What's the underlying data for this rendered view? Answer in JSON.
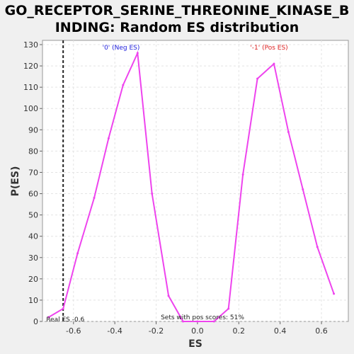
{
  "chart_data": {
    "type": "line",
    "title_line1": "GO_RECEPTOR_SERINE_THREONINE_KINASE_B",
    "title_line2": "INDING: Random ES distribution",
    "xlabel": "ES",
    "ylabel": "P(ES)",
    "xlim": [
      -0.75,
      0.73
    ],
    "ylim": [
      0,
      132
    ],
    "xticks": [
      -0.6,
      -0.4,
      -0.2,
      0.0,
      0.2,
      0.4,
      0.6
    ],
    "xtick_labels": [
      "-0.6",
      "-0.4",
      "-0.2",
      "0.0",
      "0.2",
      "0.4",
      "0.6"
    ],
    "yticks": [
      0,
      10,
      20,
      30,
      40,
      50,
      60,
      70,
      80,
      90,
      100,
      110,
      120,
      130
    ],
    "ytick_labels": [
      "0",
      "10",
      "20",
      "30",
      "40",
      "50",
      "60",
      "70",
      "80",
      "90",
      "100",
      "110",
      "120",
      "130"
    ],
    "grid": true,
    "line_color": "#ee44ee",
    "series": [
      {
        "values": [
          [
            -0.72,
            2
          ],
          [
            -0.65,
            6
          ],
          [
            -0.58,
            32
          ],
          [
            -0.5,
            58
          ],
          [
            -0.43,
            86
          ],
          [
            -0.36,
            111
          ],
          [
            -0.29,
            126
          ],
          [
            -0.22,
            60
          ],
          [
            -0.14,
            12
          ],
          [
            -0.07,
            0
          ],
          [
            0.0,
            0
          ],
          [
            0.08,
            0
          ],
          [
            0.15,
            6
          ],
          [
            0.22,
            69
          ],
          [
            0.29,
            114
          ],
          [
            0.37,
            121
          ],
          [
            0.44,
            89
          ],
          [
            0.51,
            62
          ],
          [
            0.58,
            35
          ],
          [
            0.66,
            13
          ]
        ]
      }
    ],
    "real_es": {
      "value": -0.6,
      "x": -0.65,
      "label": "Real ES -0.6",
      "color": "#222222"
    },
    "annotations": {
      "neg_label": "'0' (Neg ES)",
      "neg_color": "#2222dd",
      "pos_label": "'-1' (Pos ES)",
      "pos_color": "#dd2222",
      "sets_label": "Sets with pos scores: 51%"
    }
  }
}
